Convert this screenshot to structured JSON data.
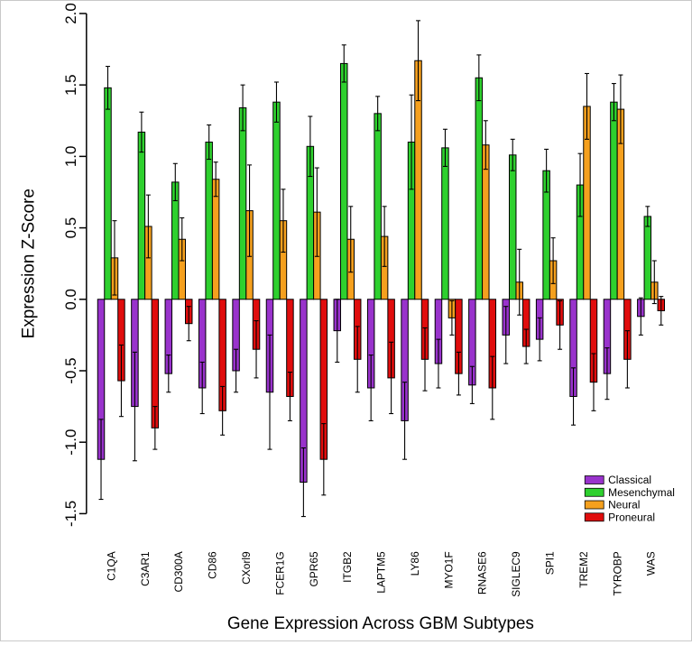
{
  "chart_data": {
    "type": "bar",
    "title": "Gene Expression Across GBM Subtypes",
    "ylabel": "Expression Z-Score",
    "xlabel": "",
    "ylim": [
      -1.5,
      2.0
    ],
    "yticks": [
      2.0,
      1.5,
      1.0,
      0.5,
      0.0,
      -0.5,
      -1.0,
      -1.5
    ],
    "grid": false,
    "legend_position": "bottom-right",
    "categories": [
      "C1QA",
      "C3AR1",
      "CD300A",
      "CD86",
      "CXorl9",
      "FCER1G",
      "GPR65",
      "ITGB2",
      "LAPTM5",
      "LY86",
      "MYO1F",
      "RNASE6",
      "SIGLEC9",
      "SPI1",
      "TREM2",
      "TYROBP",
      "WAS"
    ],
    "series": [
      {
        "name": "Classical",
        "color": "#9933CC",
        "values": [
          -1.12,
          -0.75,
          -0.52,
          -0.62,
          -0.5,
          -0.65,
          -1.28,
          -0.22,
          -0.62,
          -0.85,
          -0.45,
          -0.6,
          -0.25,
          -0.28,
          -0.68,
          -0.52,
          -0.12
        ],
        "errors": [
          0.28,
          0.38,
          0.13,
          0.18,
          0.15,
          0.4,
          0.24,
          0.22,
          0.23,
          0.27,
          0.17,
          0.13,
          0.2,
          0.15,
          0.2,
          0.18,
          0.13
        ]
      },
      {
        "name": "Mesenchymal",
        "color": "#2ED02E",
        "values": [
          1.48,
          1.17,
          0.82,
          1.1,
          1.34,
          1.38,
          1.07,
          1.65,
          1.3,
          1.1,
          1.06,
          1.55,
          1.01,
          0.9,
          0.8,
          1.38,
          0.58
        ],
        "errors": [
          0.15,
          0.14,
          0.13,
          0.12,
          0.16,
          0.14,
          0.21,
          0.13,
          0.12,
          0.33,
          0.13,
          0.16,
          0.11,
          0.15,
          0.22,
          0.13,
          0.07
        ]
      },
      {
        "name": "Neural",
        "color": "#F5A01E",
        "values": [
          0.29,
          0.51,
          0.42,
          0.84,
          0.62,
          0.55,
          0.61,
          0.42,
          0.44,
          1.67,
          -0.13,
          1.08,
          0.12,
          0.27,
          1.35,
          1.33,
          0.12
        ],
        "errors": [
          0.26,
          0.22,
          0.15,
          0.12,
          0.32,
          0.22,
          0.31,
          0.23,
          0.21,
          0.28,
          0.12,
          0.17,
          0.23,
          0.16,
          0.23,
          0.24,
          0.15
        ]
      },
      {
        "name": "Proneural",
        "color": "#E00D0D",
        "values": [
          -0.57,
          -0.9,
          -0.17,
          -0.78,
          -0.35,
          -0.68,
          -1.12,
          -0.42,
          -0.55,
          -0.42,
          -0.52,
          -0.62,
          -0.33,
          -0.18,
          -0.58,
          -0.42,
          -0.08
        ],
        "errors": [
          0.25,
          0.15,
          0.12,
          0.17,
          0.2,
          0.17,
          0.25,
          0.23,
          0.25,
          0.22,
          0.15,
          0.22,
          0.12,
          0.17,
          0.2,
          0.2,
          0.1
        ]
      }
    ]
  }
}
